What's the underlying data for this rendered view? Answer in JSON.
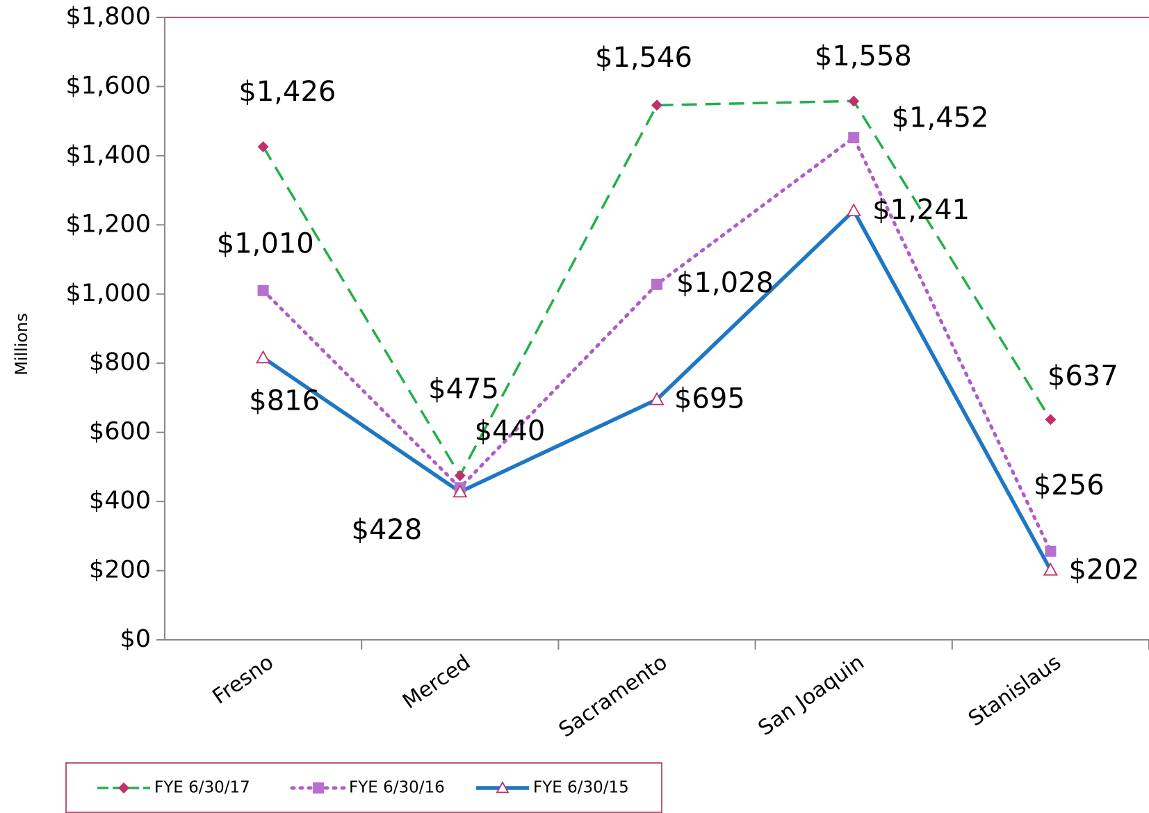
{
  "chart_data": {
    "type": "line",
    "y_label": "Millions",
    "categories": [
      "Fresno",
      "Merced",
      "Sacramento",
      "San Joaquin",
      "Stanislaus"
    ],
    "series": [
      {
        "name": "FYE 6/30/17",
        "color": "#22b04a",
        "marker_color": "#c0306a",
        "marker": "diamond",
        "line_style": "dashed",
        "values": [
          1426,
          475,
          1546,
          1558,
          637
        ],
        "value_labels": [
          "$1,426",
          "$475",
          "$1,546",
          "$1,558",
          "$637"
        ]
      },
      {
        "name": "FYE 6/30/16",
        "color": "#b05cc8",
        "marker_color": "#b870d0",
        "marker": "square",
        "line_style": "dotted",
        "values": [
          1010,
          440,
          1028,
          1452,
          256
        ],
        "value_labels": [
          "$1,010",
          "$440",
          "$1,028",
          "$1,452",
          "$256"
        ]
      },
      {
        "name": "FYE 6/30/15",
        "color": "#1f77c4",
        "marker_color": "#c0306a",
        "marker": "triangle",
        "line_style": "solid",
        "values": [
          816,
          428,
          695,
          1241,
          202
        ],
        "value_labels": [
          "$816",
          "$428",
          "$695",
          "$1,241",
          "$202"
        ]
      }
    ],
    "ylim": [
      0,
      1800
    ],
    "yticks": [
      {
        "value": 0,
        "label": "$0"
      },
      {
        "value": 200,
        "label": "$200"
      },
      {
        "value": 400,
        "label": "$400"
      },
      {
        "value": 600,
        "label": "$600"
      },
      {
        "value": 800,
        "label": "$800"
      },
      {
        "value": 1000,
        "label": "$1,000"
      },
      {
        "value": 1200,
        "label": "$1,200"
      },
      {
        "value": 1400,
        "label": "$1,400"
      },
      {
        "value": 1600,
        "label": "$1,600"
      },
      {
        "value": 1800,
        "label": "$1,800"
      }
    ],
    "grid": false,
    "legend_position": "bottom-left"
  }
}
